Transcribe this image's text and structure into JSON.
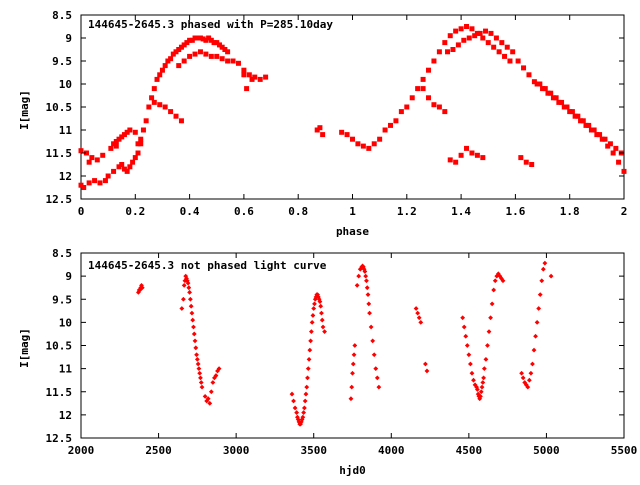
{
  "chart_data": [
    {
      "type": "scatter",
      "title": "144645-2645.3 phased with P=285.10day",
      "xlabel": "phase",
      "ylabel": "I[mag]",
      "xlim": [
        0,
        2
      ],
      "ylim": [
        12.5,
        8.5
      ],
      "y_inverted": true,
      "xticks": [
        0,
        0.2,
        0.4,
        0.6,
        0.8,
        1,
        1.2,
        1.4,
        1.6,
        1.8,
        2
      ],
      "xtick_labels": [
        "0",
        "0.2",
        "0.4",
        "0.6",
        "0.8",
        "1",
        "1.2",
        "1.4",
        "1.6",
        "1.8",
        "2"
      ],
      "yticks": [
        8.5,
        9,
        9.5,
        10,
        10.5,
        11,
        11.5,
        12,
        12.5
      ],
      "ytick_labels": [
        "8.5",
        "9",
        "9.5",
        "10",
        "10.5",
        "11",
        "11.5",
        "12",
        "12.5"
      ],
      "grid": false,
      "marker_color": "#ff0000",
      "marker": "filled-square",
      "series": [
        {
          "x": [
            0.0,
            0.01,
            0.03,
            0.05,
            0.07,
            0.09,
            0.1,
            0.12,
            0.14,
            0.02,
            0.04,
            0.06,
            0.08,
            0.11,
            0.13,
            0.0,
            0.02,
            0.03,
            0.15,
            0.16,
            0.17,
            0.18,
            0.19,
            0.2,
            0.21,
            0.22,
            0.14,
            0.16,
            0.18,
            0.2,
            0.22,
            0.12,
            0.13,
            0.15,
            0.17,
            0.21,
            0.23,
            0.24,
            0.25,
            0.26,
            0.27,
            0.28,
            0.29,
            0.3,
            0.31,
            0.32,
            0.33,
            0.34,
            0.35,
            0.36,
            0.37,
            0.38,
            0.39,
            0.4,
            0.41,
            0.42,
            0.43,
            0.44,
            0.45,
            0.46,
            0.47,
            0.48,
            0.49,
            0.5,
            0.51,
            0.52,
            0.53,
            0.54,
            0.36,
            0.38,
            0.4,
            0.42,
            0.44,
            0.46,
            0.48,
            0.5,
            0.52,
            0.54,
            0.56,
            0.58,
            0.6,
            0.62,
            0.63,
            0.64,
            0.66,
            0.68,
            0.6,
            0.61,
            0.27,
            0.29,
            0.31,
            0.33,
            0.35,
            0.37,
            0.87,
            0.88,
            0.89,
            0.96,
            0.98,
            1.0,
            1.02,
            1.04,
            1.06,
            1.08,
            1.1,
            1.12,
            1.14,
            1.16,
            1.18,
            1.2,
            1.22,
            1.24,
            1.26,
            1.28,
            1.3,
            1.32,
            1.34,
            1.36,
            1.38,
            1.4,
            1.42,
            1.44,
            1.46,
            1.48,
            1.5,
            1.52,
            1.54,
            1.56,
            1.58,
            1.35,
            1.37,
            1.39,
            1.41,
            1.43,
            1.45,
            1.47,
            1.49,
            1.51,
            1.53,
            1.55,
            1.57,
            1.59,
            1.61,
            1.63,
            1.65,
            1.67,
            1.69,
            1.71,
            1.73,
            1.75,
            1.77,
            1.79,
            1.81,
            1.83,
            1.85,
            1.87,
            1.89,
            1.91,
            1.93,
            1.95,
            1.97,
            1.99,
            1.68,
            1.7,
            1.72,
            1.74,
            1.76,
            1.78,
            1.8,
            1.82,
            1.84,
            1.86,
            1.88,
            1.9,
            1.92,
            1.94,
            1.96,
            1.98,
            2.0,
            1.26,
            1.28,
            1.3,
            1.32,
            1.34,
            1.36,
            1.38,
            1.4,
            1.42,
            1.44,
            1.46,
            1.48,
            1.62,
            1.64,
            1.66
          ],
          "y": [
            12.2,
            12.25,
            12.15,
            12.1,
            12.15,
            12.1,
            12.0,
            11.9,
            11.8,
            11.5,
            11.6,
            11.65,
            11.55,
            11.4,
            11.35,
            11.45,
            11.5,
            11.7,
            11.75,
            11.85,
            11.9,
            11.8,
            11.7,
            11.6,
            11.5,
            11.3,
            11.2,
            11.1,
            11.0,
            11.05,
            11.2,
            11.3,
            11.25,
            11.15,
            11.05,
            11.3,
            11.0,
            10.8,
            10.5,
            10.3,
            10.1,
            9.9,
            9.8,
            9.7,
            9.6,
            9.5,
            9.45,
            9.35,
            9.3,
            9.25,
            9.2,
            9.15,
            9.1,
            9.05,
            9.05,
            9.0,
            9.0,
            9.0,
            9.02,
            9.05,
            9.0,
            9.05,
            9.1,
            9.1,
            9.15,
            9.2,
            9.25,
            9.3,
            9.6,
            9.5,
            9.4,
            9.35,
            9.3,
            9.35,
            9.4,
            9.4,
            9.45,
            9.5,
            9.5,
            9.55,
            9.7,
            9.8,
            9.9,
            9.85,
            9.9,
            9.85,
            9.8,
            10.1,
            10.4,
            10.45,
            10.5,
            10.6,
            10.7,
            10.8,
            11.0,
            10.95,
            11.1,
            11.05,
            11.1,
            11.2,
            11.3,
            11.35,
            11.4,
            11.3,
            11.2,
            11.0,
            10.9,
            10.8,
            10.6,
            10.5,
            10.3,
            10.1,
            9.9,
            9.7,
            9.5,
            9.3,
            9.1,
            8.95,
            8.85,
            8.8,
            8.75,
            8.8,
            8.9,
            9.0,
            9.1,
            9.2,
            9.3,
            9.4,
            9.5,
            9.3,
            9.25,
            9.15,
            9.05,
            9.0,
            8.95,
            8.9,
            8.85,
            8.9,
            9.0,
            9.1,
            9.2,
            9.3,
            9.5,
            9.65,
            9.8,
            9.95,
            10.0,
            10.1,
            10.2,
            10.3,
            10.4,
            10.5,
            10.6,
            10.7,
            10.8,
            10.9,
            11.0,
            11.1,
            11.2,
            11.3,
            11.4,
            11.5,
            10.0,
            10.1,
            10.2,
            10.3,
            10.4,
            10.5,
            10.6,
            10.7,
            10.8,
            10.9,
            11.0,
            11.1,
            11.2,
            11.35,
            11.5,
            11.7,
            11.9,
            10.1,
            10.3,
            10.45,
            10.5,
            10.6,
            11.65,
            11.7,
            11.55,
            11.4,
            11.5,
            11.55,
            11.6,
            11.6,
            11.7,
            11.75
          ]
        }
      ]
    },
    {
      "type": "scatter",
      "title": "144645-2645.3 not phased light curve",
      "xlabel": "hjd0",
      "ylabel": "I[mag]",
      "xlim": [
        2000,
        5500
      ],
      "ylim": [
        12.5,
        8.5
      ],
      "y_inverted": true,
      "xticks": [
        2000,
        2500,
        3000,
        3500,
        4000,
        4500,
        5000,
        5500
      ],
      "xtick_labels": [
        "2000",
        "2500",
        "3000",
        "3500",
        "4000",
        "4500",
        "5000",
        "5500"
      ],
      "yticks": [
        8.5,
        9,
        9.5,
        10,
        10.5,
        11,
        11.5,
        12,
        12.5
      ],
      "ytick_labels": [
        "8.5",
        "9",
        "9.5",
        "10",
        "10.5",
        "11",
        "11.5",
        "12",
        "12.5"
      ],
      "grid": false,
      "marker_color": "#ff0000",
      "marker": "filled-diamond",
      "series": [
        {
          "x": [
            2370,
            2375,
            2380,
            2385,
            2390,
            2395,
            2650,
            2660,
            2665,
            2670,
            2675,
            2680,
            2685,
            2690,
            2695,
            2700,
            2705,
            2710,
            2715,
            2720,
            2725,
            2730,
            2735,
            2740,
            2745,
            2750,
            2755,
            2760,
            2765,
            2770,
            2775,
            2780,
            2800,
            2810,
            2820,
            2830,
            2840,
            2850,
            2860,
            2870,
            2880,
            2890,
            3360,
            3370,
            3380,
            3390,
            3395,
            3400,
            3405,
            3410,
            3415,
            3420,
            3425,
            3430,
            3435,
            3440,
            3445,
            3450,
            3455,
            3460,
            3465,
            3470,
            3475,
            3480,
            3485,
            3490,
            3495,
            3500,
            3505,
            3510,
            3515,
            3520,
            3525,
            3530,
            3535,
            3540,
            3545,
            3550,
            3555,
            3560,
            3570,
            3740,
            3745,
            3750,
            3755,
            3760,
            3765,
            3780,
            3790,
            3800,
            3810,
            3815,
            3820,
            3825,
            3830,
            3835,
            3840,
            3845,
            3850,
            3855,
            3860,
            3870,
            3880,
            3890,
            3900,
            3910,
            3920,
            4160,
            4170,
            4180,
            4190,
            4220,
            4230,
            4460,
            4470,
            4480,
            4490,
            4500,
            4510,
            4520,
            4530,
            4540,
            4550,
            4555,
            4560,
            4565,
            4570,
            4575,
            4580,
            4585,
            4590,
            4595,
            4600,
            4610,
            4620,
            4630,
            4640,
            4650,
            4660,
            4670,
            4680,
            4690,
            4700,
            4710,
            4720,
            4840,
            4850,
            4860,
            4870,
            4880,
            4890,
            4900,
            4910,
            4920,
            4930,
            4940,
            4950,
            4960,
            4970,
            4980,
            4990,
            5030
          ],
          "y": [
            9.35,
            9.3,
            9.3,
            9.25,
            9.2,
            9.25,
            9.7,
            9.5,
            9.2,
            9.1,
            9.0,
            9.05,
            9.1,
            9.15,
            9.25,
            9.35,
            9.5,
            9.65,
            9.8,
            9.95,
            10.1,
            10.25,
            10.4,
            10.55,
            10.7,
            10.8,
            10.9,
            11.0,
            11.1,
            11.2,
            11.3,
            11.4,
            11.6,
            11.7,
            11.65,
            11.75,
            11.5,
            11.3,
            11.2,
            11.15,
            11.05,
            11.0,
            11.55,
            11.7,
            11.85,
            11.95,
            12.05,
            12.1,
            12.15,
            12.2,
            12.2,
            12.15,
            12.1,
            12.05,
            11.95,
            11.85,
            11.7,
            11.55,
            11.4,
            11.2,
            11.0,
            10.8,
            10.6,
            10.4,
            10.2,
            10.0,
            9.85,
            9.7,
            9.6,
            9.5,
            9.45,
            9.4,
            9.4,
            9.45,
            9.5,
            9.55,
            9.65,
            9.8,
            9.95,
            10.1,
            10.2,
            11.65,
            11.4,
            11.1,
            10.9,
            10.7,
            10.5,
            9.2,
            9.0,
            8.85,
            8.8,
            8.78,
            8.8,
            8.85,
            8.9,
            9.0,
            9.1,
            9.25,
            9.4,
            9.6,
            9.8,
            10.1,
            10.4,
            10.7,
            11.0,
            11.2,
            11.4,
            9.7,
            9.8,
            9.9,
            10.0,
            10.9,
            11.05,
            9.9,
            10.1,
            10.3,
            10.5,
            10.7,
            10.9,
            11.1,
            11.25,
            11.35,
            11.4,
            11.45,
            11.55,
            11.6,
            11.65,
            11.6,
            11.5,
            11.4,
            11.3,
            11.2,
            11.0,
            10.8,
            10.5,
            10.2,
            9.9,
            9.6,
            9.3,
            9.1,
            9.0,
            8.95,
            9.0,
            9.05,
            9.1,
            11.1,
            11.2,
            11.3,
            11.35,
            11.4,
            11.25,
            11.1,
            10.9,
            10.6,
            10.3,
            10.0,
            9.7,
            9.4,
            9.1,
            8.85,
            8.72,
            9.0
          ]
        }
      ]
    }
  ]
}
